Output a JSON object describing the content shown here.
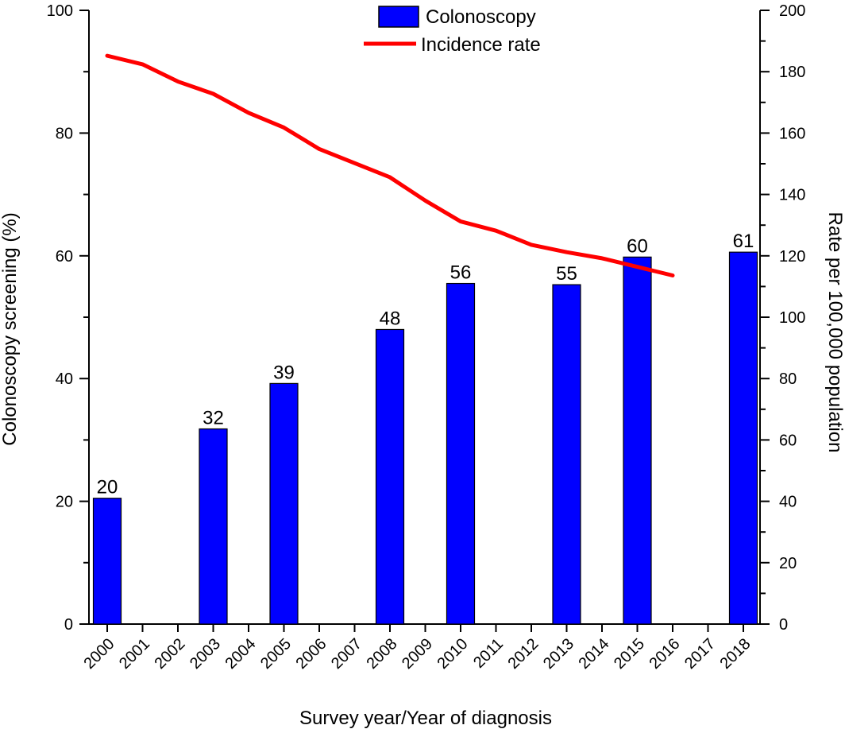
{
  "chart_data": {
    "type": "bar",
    "categories": [
      "2000",
      "2001",
      "2002",
      "2003",
      "2004",
      "2005",
      "2006",
      "2007",
      "2008",
      "2009",
      "2010",
      "2011",
      "2012",
      "2013",
      "2014",
      "2015",
      "2016",
      "2017",
      "2018"
    ],
    "series": [
      {
        "name": "Colonoscopy",
        "kind": "bar",
        "axis": "left",
        "color": "#0000ff",
        "x": [
          "2000",
          "2003",
          "2005",
          "2008",
          "2010",
          "2013",
          "2015",
          "2018"
        ],
        "values": [
          20.5,
          31.8,
          39.2,
          48.0,
          55.5,
          55.3,
          59.8,
          60.6
        ],
        "labels": [
          "20",
          "32",
          "39",
          "48",
          "56",
          "55",
          "60",
          "61"
        ]
      },
      {
        "name": "Incidence rate",
        "kind": "line",
        "axis": "right",
        "color": "#ff0000",
        "x": [
          "2000",
          "2001",
          "2002",
          "2003",
          "2004",
          "2005",
          "2006",
          "2007",
          "2008",
          "2009",
          "2010",
          "2011",
          "2012",
          "2013",
          "2014",
          "2015",
          "2016"
        ],
        "values": [
          185.2,
          182.4,
          176.8,
          172.8,
          166.6,
          161.8,
          154.8,
          150.2,
          145.6,
          138.0,
          131.2,
          128.2,
          123.6,
          121.2,
          119.2,
          116.4,
          113.6
        ]
      }
    ],
    "xlabel": "Survey year/Year of diagnosis",
    "ylabel": "Colonoscopy screening (%)",
    "y2label": "Rate per 100,000 population",
    "ylim": [
      0,
      100
    ],
    "y2lim": [
      0,
      200
    ],
    "yticks": [
      0,
      20,
      40,
      60,
      80,
      100
    ],
    "y2ticks": [
      0,
      20,
      40,
      60,
      80,
      100,
      120,
      140,
      160,
      180,
      200
    ],
    "grid": false,
    "legend_position": "top-center"
  }
}
